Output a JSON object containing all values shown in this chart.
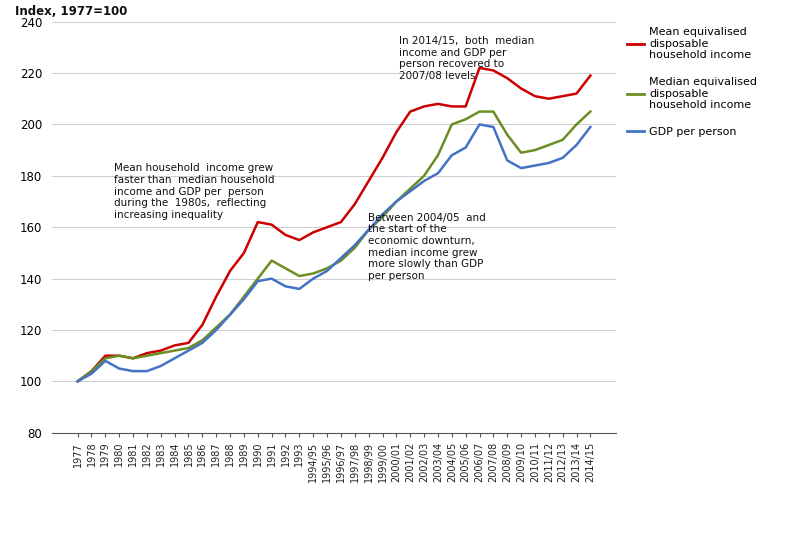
{
  "x_labels": [
    "1977",
    "1978",
    "1979",
    "1980",
    "1981",
    "1982",
    "1983",
    "1984",
    "1985",
    "1986",
    "1987",
    "1988",
    "1989",
    "1990",
    "1991",
    "1992",
    "1993",
    "1994/95",
    "1995/96",
    "1996/97",
    "1997/98",
    "1998/99",
    "1999/00",
    "2000/01",
    "2001/02",
    "2002/03",
    "2003/04",
    "2004/05",
    "2005/06",
    "2006/07",
    "2007/08",
    "2008/09",
    "2009/10",
    "2010/11",
    "2011/12",
    "2012/13",
    "2013/14",
    "2014/15"
  ],
  "mean_income": [
    100,
    104,
    110,
    110,
    109,
    111,
    112,
    114,
    115,
    122,
    133,
    143,
    150,
    162,
    161,
    157,
    155,
    158,
    160,
    162,
    169,
    178,
    187,
    197,
    205,
    207,
    208,
    207,
    207,
    222,
    221,
    218,
    214,
    211,
    210,
    211,
    212,
    219
  ],
  "median_income": [
    100,
    104,
    109,
    110,
    109,
    110,
    111,
    112,
    113,
    116,
    121,
    126,
    133,
    140,
    147,
    144,
    141,
    142,
    144,
    147,
    152,
    159,
    164,
    170,
    175,
    180,
    188,
    200,
    202,
    205,
    205,
    196,
    189,
    190,
    192,
    194,
    200,
    205
  ],
  "gdp_per_person": [
    100,
    103,
    108,
    105,
    104,
    104,
    106,
    109,
    112,
    115,
    120,
    126,
    132,
    139,
    140,
    137,
    136,
    140,
    143,
    148,
    153,
    159,
    165,
    170,
    174,
    178,
    181,
    188,
    191,
    200,
    199,
    186,
    183,
    184,
    185,
    187,
    192,
    199
  ],
  "mean_color": "#cc0000",
  "median_color": "#6b8e23",
  "gdp_color": "#4472c4",
  "title": "Index, 1977=100",
  "ylim": [
    80,
    240
  ],
  "yticks": [
    80,
    100,
    120,
    140,
    160,
    180,
    200,
    220,
    240
  ],
  "annotation1_text": "Mean household  income grew\nfaster than  median household\nincome and GDP per  person\nduring the  1980s,  reflecting\nincreasing inequality",
  "annotation2_text": "In 2014/15,  both  median\nincome and GDP per\nperson recovered to\n2007/08 levels",
  "annotation3_text": "Between 2004/05  and\nthe start of the\neconomic downturn,\nmedian income grew\nmore slowly than GDP\nper person",
  "legend_mean": "Mean equivalised\ndisposable\nhousehold income",
  "legend_median": "Median equivalised\ndisposable\nhousehold income",
  "legend_gdp": "GDP per person",
  "bg_color": "#ffffff",
  "grid_color": "#cccccc"
}
